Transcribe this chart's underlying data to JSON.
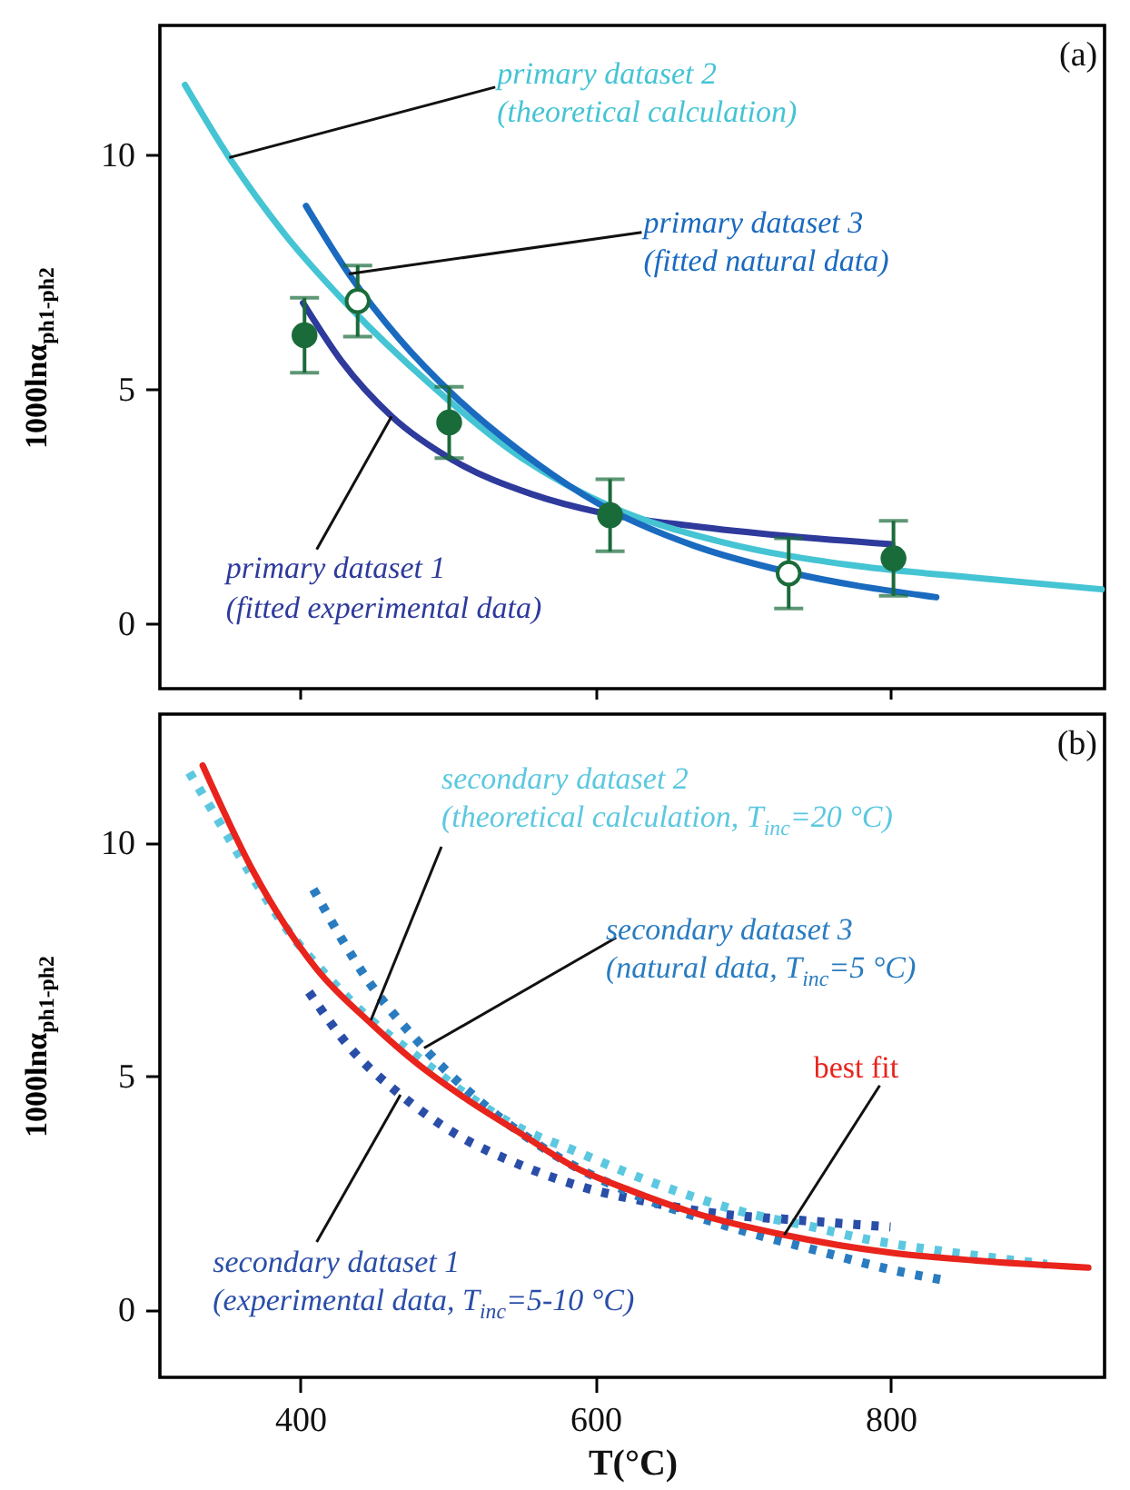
{
  "chart_data": [
    {
      "type": "line",
      "title": "(a)",
      "ylabel": "1000lnα$_{ph1-ph2}$",
      "xlim": [
        305,
        945
      ],
      "ylim": [
        -1.4,
        12.75
      ],
      "xticks": [
        400,
        600,
        800
      ],
      "yticks": [
        0,
        5,
        10
      ],
      "tick_labels": "y",
      "line_style": "solid",
      "marker": "none",
      "series": [
        {
          "name": "primary dataset 1\n(fitted experimental data)",
          "color": "#2e3a9c",
          "x": [
            402,
            428,
            462,
            505,
            556,
            606,
            666,
            729,
            801
          ],
          "values": [
            6.83,
            5.59,
            4.41,
            3.45,
            2.76,
            2.34,
            2.07,
            1.86,
            1.68
          ]
        },
        {
          "name": "primary dataset 2\n(theoretical calculation)",
          "color": "#45c4d4",
          "x": [
            322,
            352,
            390,
            433,
            488,
            547,
            611,
            687,
            772,
            856,
            943
          ],
          "values": [
            11.48,
            9.93,
            8.28,
            6.76,
            5.1,
            3.59,
            2.48,
            1.72,
            1.24,
            0.97,
            0.72
          ]
        },
        {
          "name": "primary dataset 3\n(fitted natural data)",
          "color": "#1a6ac0",
          "x": [
            404,
            433,
            467,
            505,
            547,
            602,
            666,
            729,
            831
          ],
          "values": [
            8.9,
            7.45,
            6.07,
            4.83,
            3.72,
            2.55,
            1.66,
            1.1,
            0.55
          ]
        },
        {
          "type": "scatter",
          "marker": "circle",
          "color": "#1a6b3a",
          "x": [
            403,
            501,
            610,
            802
          ],
          "values": [
            6.14,
            4.28,
            2.3,
            1.38
          ],
          "errors": [
            0.8,
            0.76,
            0.77,
            0.8
          ]
        },
        {
          "type": "scatter",
          "marker": "circle",
          "color": "#ffffff",
          "x": [
            439,
            731
          ],
          "values": [
            6.87,
            1.06
          ],
          "errors": [
            0.76,
            0.75
          ]
        }
      ]
    },
    {
      "type": "line",
      "title": "(b)",
      "xlabel": "T(°C)",
      "ylabel": "1000lnα$_{ph1-ph2}$",
      "xlim": [
        305,
        945
      ],
      "ylim": [
        -1.45,
        12.75
      ],
      "xticks": [
        400,
        600,
        800
      ],
      "yticks": [
        0,
        5,
        10
      ],
      "marker": "none",
      "series": [
        {
          "name": "secondary dataset 1\n(experimental data, T$_{inc}$=5-10 °C)",
          "color": "#2a4ea8",
          "line_style": "dotted",
          "x": [
            406,
            434,
            468,
            506,
            549,
            594,
            637,
            684,
            731,
            778,
            800
          ],
          "values": [
            6.8,
            5.6,
            4.6,
            3.75,
            3.1,
            2.6,
            2.3,
            2.05,
            1.93,
            1.82,
            1.77
          ]
        },
        {
          "name": "secondary dataset 2\n(theoretical calculation, T$_{inc}$=20 °C)",
          "color": "#5cc8e0",
          "line_style": "dotted",
          "x": [
            325,
            346,
            368,
            391,
            418,
            448,
            480,
            513,
            548,
            586,
            624,
            663,
            705,
            743,
            785,
            824,
            865,
            906
          ],
          "values": [
            11.5,
            10.4,
            9.25,
            8.15,
            7.15,
            6.2,
            5.4,
            4.6,
            3.9,
            3.4,
            2.9,
            2.45,
            2.05,
            1.8,
            1.5,
            1.3,
            1.13,
            0.97
          ]
        },
        {
          "name": "secondary dataset 3\n(natural data, T$_{inc}$=5 °C)",
          "color": "#2a7cc0",
          "line_style": "dotted",
          "x": [
            409,
            447,
            484,
            526,
            573,
            624,
            688,
            752,
            804,
            838
          ],
          "values": [
            9.0,
            7.0,
            5.6,
            4.35,
            3.3,
            2.5,
            1.8,
            1.25,
            0.83,
            0.62
          ]
        },
        {
          "name": "best fit",
          "color": "#e8241c",
          "line_style": "solid",
          "x": [
            334,
            368,
            411,
            449,
            480,
            513,
            548,
            586,
            624,
            664,
            728,
            800,
            858,
            934
          ],
          "values": [
            11.65,
            9.4,
            7.3,
            6.1,
            5.25,
            4.5,
            3.8,
            3.05,
            2.55,
            2.1,
            1.6,
            1.22,
            1.05,
            0.9
          ]
        }
      ]
    }
  ]
}
